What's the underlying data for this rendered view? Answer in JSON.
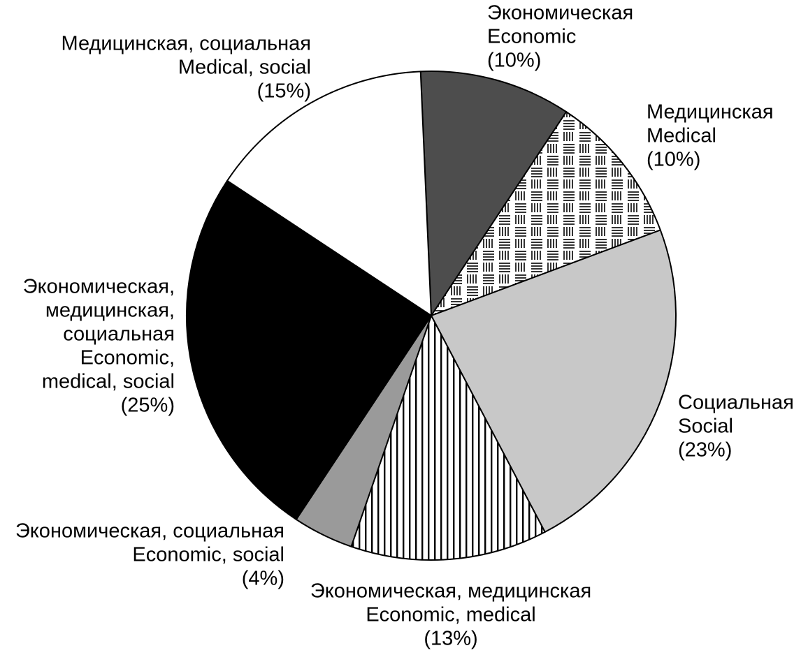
{
  "chart_data": {
    "type": "pie",
    "categories": [
      [
        "Экономическая",
        "Economic"
      ],
      [
        "Медицинская",
        "Medical"
      ],
      [
        "Социальная",
        "Social"
      ],
      [
        "Экономическая, медицинская",
        "Economic, medical"
      ],
      [
        "Экономическая, социальная",
        "Economic, social"
      ],
      [
        "Экономическая,",
        "медицинская,",
        "социальная",
        "Economic,",
        "medical, social"
      ],
      [
        "Медицинская, социальная",
        "Medical, social"
      ]
    ],
    "values": [
      10,
      10,
      23,
      13,
      4,
      25,
      15
    ],
    "value_labels": [
      "(10%)",
      "(10%)",
      "(23%)",
      "(13%)",
      "(4%)",
      "(25%)",
      "(15%)"
    ],
    "fills": [
      "#4d4d4d",
      "hatch-mixed",
      "#c8c8c8",
      "hatch-vertical",
      "#9a9a9a",
      "#000000",
      "#ffffff"
    ]
  }
}
